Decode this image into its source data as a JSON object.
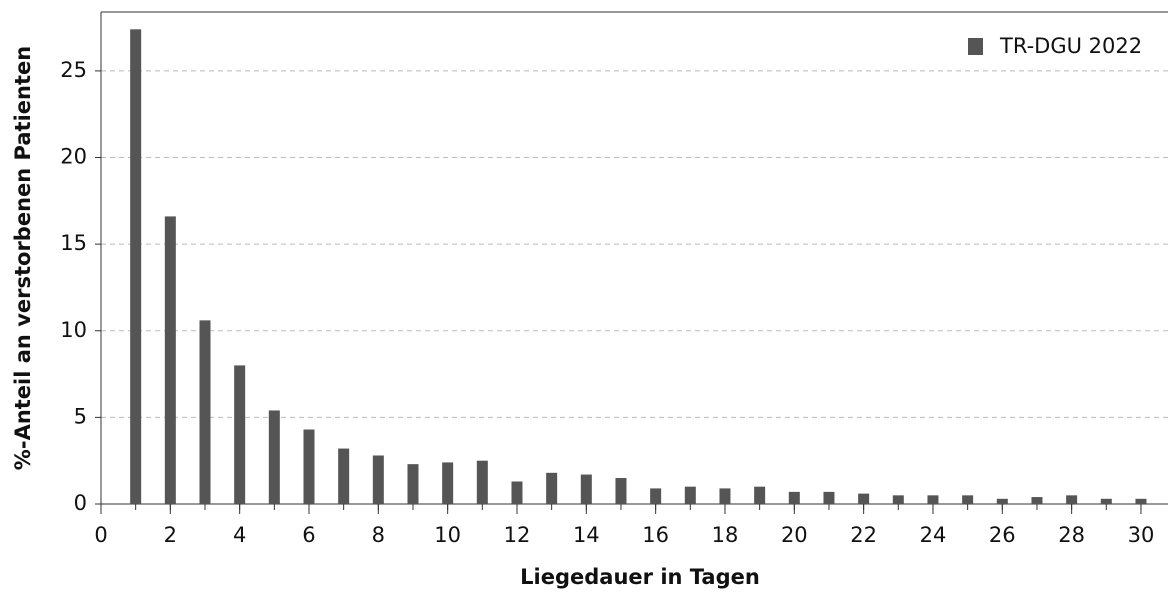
{
  "chart_data": {
    "type": "bar",
    "xlabel": "Liegedauer in Tagen",
    "ylabel": "%-Anteil an verstorbenen Patienten",
    "x": [
      1,
      2,
      3,
      4,
      5,
      6,
      7,
      8,
      9,
      10,
      11,
      12,
      13,
      14,
      15,
      16,
      17,
      18,
      19,
      20,
      21,
      22,
      23,
      24,
      25,
      26,
      27,
      28,
      29,
      30
    ],
    "series": [
      {
        "name": "TR-DGU 2022",
        "color": "#555555",
        "values": [
          27.4,
          16.6,
          10.6,
          8.0,
          5.4,
          4.3,
          3.2,
          2.8,
          2.3,
          2.4,
          2.5,
          1.3,
          1.8,
          1.7,
          1.5,
          0.9,
          1.0,
          0.9,
          1.0,
          0.7,
          0.7,
          0.6,
          0.5,
          0.5,
          0.5,
          0.3,
          0.4,
          0.5,
          0.3,
          0.3
        ]
      }
    ],
    "xlim": [
      0,
      30.78
    ],
    "xticks": [
      0,
      2,
      4,
      6,
      8,
      10,
      12,
      14,
      16,
      18,
      20,
      22,
      24,
      26,
      28,
      30
    ],
    "ylim": [
      0,
      28.4
    ],
    "yticks": [
      0,
      5,
      10,
      15,
      20,
      25
    ],
    "grid": true,
    "legend": "upper right"
  }
}
